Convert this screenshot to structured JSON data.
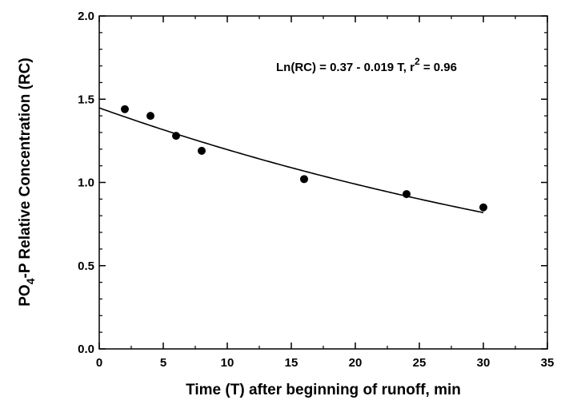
{
  "chart_data": {
    "type": "scatter",
    "xlabel": "Time (T) after beginning of runoff, min",
    "ylabel_main": "PO",
    "ylabel_sub": "4",
    "ylabel_rest": "-P Relative Concentration (RC)",
    "xlim": [
      0,
      35
    ],
    "ylim": [
      0,
      2.0
    ],
    "x_ticks": [
      "0",
      "5",
      "10",
      "15",
      "20",
      "25",
      "30",
      "35"
    ],
    "y_ticks": [
      "0.0",
      "0.5",
      "1.0",
      "1.5",
      "2.0"
    ],
    "points": [
      {
        "x": 2,
        "y": 1.44
      },
      {
        "x": 4,
        "y": 1.4
      },
      {
        "x": 6,
        "y": 1.28
      },
      {
        "x": 8,
        "y": 1.19
      },
      {
        "x": 16,
        "y": 1.02
      },
      {
        "x": 24,
        "y": 0.93
      },
      {
        "x": 30,
        "y": 0.85
      }
    ],
    "fit_line": {
      "intercept": 0.37,
      "slope": -0.019,
      "x_range": [
        0,
        30
      ]
    },
    "annotation_main": "Ln(RC) = 0.37 - 0.019 T, r",
    "annotation_sup": "2",
    "annotation_end": " = 0.96",
    "grid": false
  }
}
